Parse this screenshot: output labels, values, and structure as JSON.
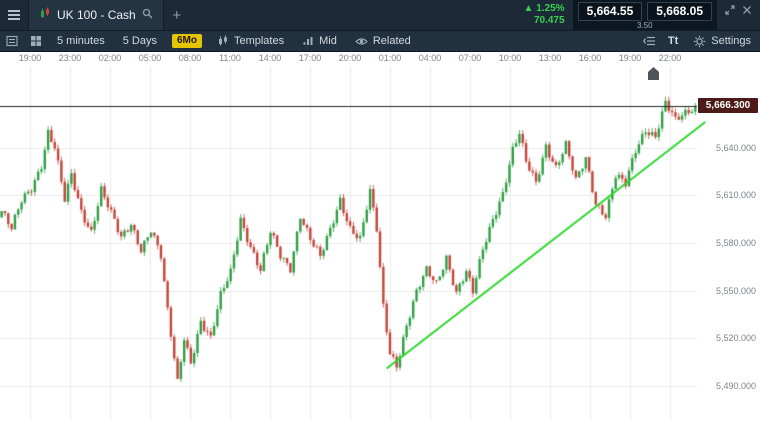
{
  "header": {
    "instrument": "UK 100 - Cash",
    "add_tab_label": "+",
    "change_percent": "▲ 1.25%",
    "change_points": "70.475",
    "sell_price": "5,664.55",
    "buy_price": "5,668.05",
    "spread": "3.50"
  },
  "toolbar": {
    "interval_label": "5 minutes",
    "range_label": "5 Days",
    "history_badge": "6Mo",
    "templates_label": "Templates",
    "price_type_label": "Mid",
    "related_label": "Related",
    "text_size_label": "Tt",
    "settings_label": "Settings"
  },
  "chart_data": {
    "type": "candlestick",
    "title": "UK 100 - Cash, 5-minute candles, 5 days",
    "time_labels": [
      "19:00",
      "23:00",
      "02:00",
      "05:00",
      "08:00",
      "11:00",
      "14:00",
      "17:00",
      "20:00",
      "01:00",
      "04:00",
      "07:00",
      "10:00",
      "13:00",
      "16:00",
      "19:00",
      "22:00"
    ],
    "price_ticks": [
      {
        "label": "5,640.000",
        "value": 5640
      },
      {
        "label": "5,610.000",
        "value": 5610
      },
      {
        "label": "5,580.000",
        "value": 5580
      },
      {
        "label": "5,550.000",
        "value": 5550
      },
      {
        "label": "5,520.000",
        "value": 5520
      },
      {
        "label": "5,490.000",
        "value": 5490
      }
    ],
    "ylim": [
      5468,
      5690
    ],
    "current_price": 5666.3,
    "current_price_label": "5,666.300",
    "candle_count": 210,
    "close_anchors": [
      [
        0,
        5600
      ],
      [
        3,
        5588
      ],
      [
        6,
        5606
      ],
      [
        9,
        5615
      ],
      [
        12,
        5630
      ],
      [
        14,
        5650
      ],
      [
        16,
        5640
      ],
      [
        19,
        5606
      ],
      [
        21,
        5622
      ],
      [
        24,
        5600
      ],
      [
        27,
        5588
      ],
      [
        30,
        5614
      ],
      [
        33,
        5598
      ],
      [
        36,
        5582
      ],
      [
        39,
        5592
      ],
      [
        42,
        5577
      ],
      [
        45,
        5589
      ],
      [
        48,
        5571
      ],
      [
        50,
        5536
      ],
      [
        53,
        5492
      ],
      [
        55,
        5521
      ],
      [
        57,
        5506
      ],
      [
        60,
        5531
      ],
      [
        63,
        5519
      ],
      [
        66,
        5546
      ],
      [
        69,
        5562
      ],
      [
        72,
        5596
      ],
      [
        75,
        5578
      ],
      [
        78,
        5562
      ],
      [
        81,
        5586
      ],
      [
        84,
        5572
      ],
      [
        87,
        5565
      ],
      [
        90,
        5598
      ],
      [
        93,
        5582
      ],
      [
        96,
        5570
      ],
      [
        99,
        5588
      ],
      [
        102,
        5608
      ],
      [
        105,
        5590
      ],
      [
        108,
        5582
      ],
      [
        111,
        5611
      ],
      [
        113,
        5588
      ],
      [
        115,
        5540
      ],
      [
        117,
        5512
      ],
      [
        119,
        5504
      ],
      [
        122,
        5528
      ],
      [
        125,
        5548
      ],
      [
        128,
        5562
      ],
      [
        131,
        5555
      ],
      [
        134,
        5572
      ],
      [
        137,
        5549
      ],
      [
        140,
        5561
      ],
      [
        142,
        5548
      ],
      [
        145,
        5576
      ],
      [
        148,
        5596
      ],
      [
        151,
        5612
      ],
      [
        154,
        5638
      ],
      [
        156,
        5648
      ],
      [
        158,
        5630
      ],
      [
        161,
        5618
      ],
      [
        164,
        5642
      ],
      [
        167,
        5628
      ],
      [
        170,
        5641
      ],
      [
        173,
        5618
      ],
      [
        176,
        5633
      ],
      [
        179,
        5606
      ],
      [
        182,
        5598
      ],
      [
        185,
        5622
      ],
      [
        188,
        5616
      ],
      [
        191,
        5638
      ],
      [
        194,
        5652
      ],
      [
        197,
        5648
      ],
      [
        200,
        5668
      ],
      [
        203,
        5656
      ],
      [
        206,
        5661
      ],
      [
        209,
        5666.3
      ]
    ],
    "trendline": {
      "color": "#2bd62b",
      "start": {
        "i": 116,
        "price": 5501
      },
      "end": {
        "i": 212,
        "price": 5656
      }
    },
    "colors": {
      "up": "#2f9e44",
      "down": "#c2453a",
      "grid": "#ebebeb",
      "line": "#222222",
      "price_tag_bg": "#4d1a1a"
    }
  }
}
